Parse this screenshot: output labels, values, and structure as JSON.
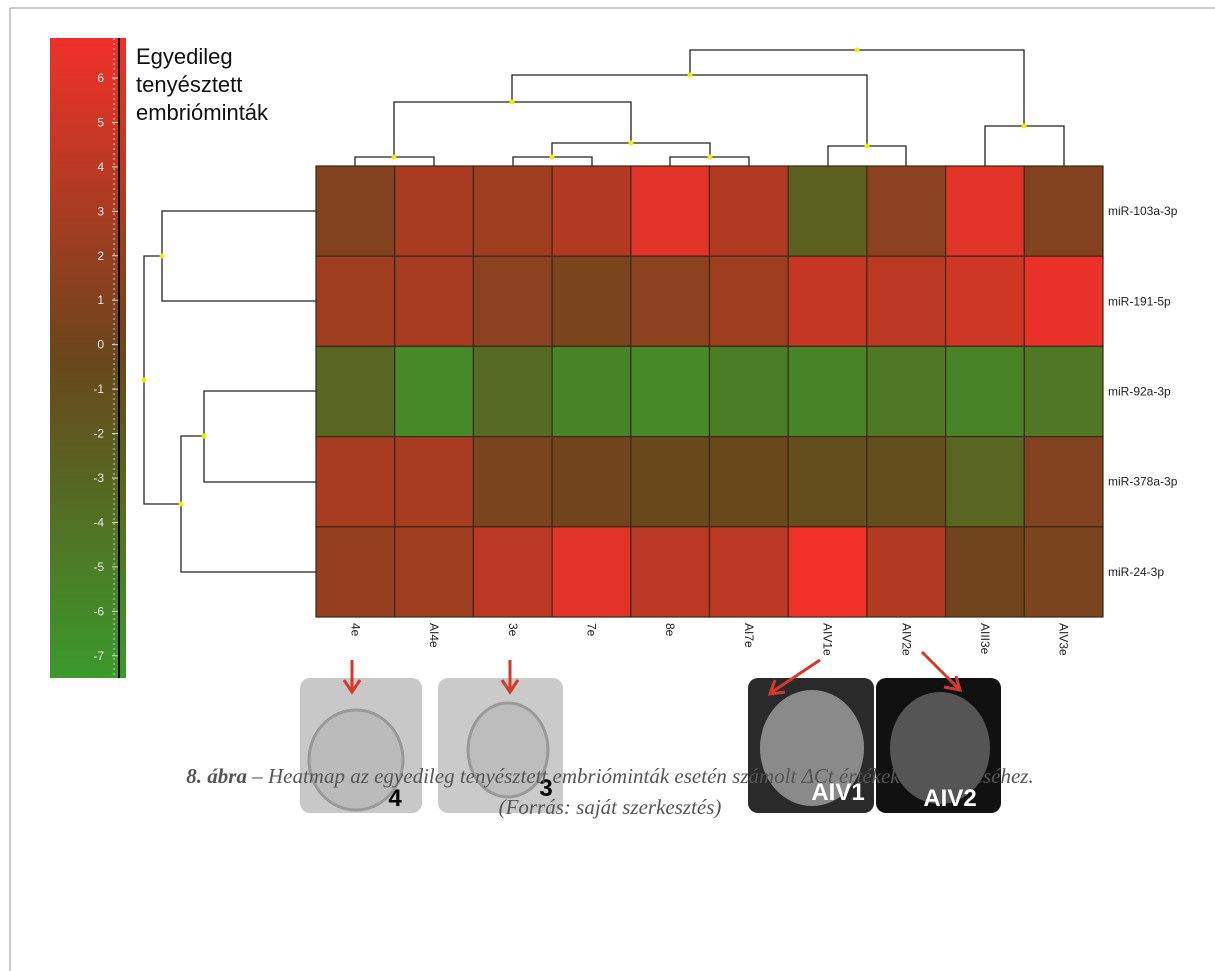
{
  "chart_data": {
    "type": "heatmap",
    "legend_title": [
      "Egyedileg",
      "tenyésztett",
      "embrióminták"
    ],
    "x_categories": [
      "4e",
      "AI4e",
      "3e",
      "7e",
      "8e",
      "AI7e",
      "AIV1e",
      "AIV2e",
      "AIII3e",
      "AIV3e"
    ],
    "y_categories": [
      "miR-103a-3p",
      "miR-191-5p",
      "miR-92a-3p",
      "miR-378a-3p",
      "miR-24-3p"
    ],
    "values": [
      [
        1,
        3,
        2.5,
        3.5,
        6,
        3.5,
        -2.5,
        1.5,
        6,
        1
      ],
      [
        2.5,
        3,
        1.5,
        0.5,
        1.5,
        2.5,
        4.5,
        4,
        5,
        6.5
      ],
      [
        -3,
        -6,
        -3.5,
        -5.5,
        -6,
        -5,
        -5.5,
        -4.5,
        -5.5,
        -4.5
      ],
      [
        3,
        3,
        0.5,
        0,
        -0.5,
        -0.5,
        -1,
        -1,
        -3,
        1
      ],
      [
        2,
        2.5,
        4,
        6,
        4,
        4,
        7,
        3.5,
        0,
        0.5
      ]
    ],
    "zlim": [
      -7.5,
      6.9
    ],
    "zticks": [
      6,
      5,
      4,
      3,
      2,
      1,
      0,
      -1,
      -2,
      -3,
      -4,
      -5,
      -6,
      -7
    ],
    "colors": [
      "#3b9a2c",
      "#6a461c",
      "#f2302a"
    ]
  },
  "images": [
    {
      "label": "4"
    },
    {
      "label": "3"
    },
    {
      "label": "AIV1"
    },
    {
      "label": "AIV2"
    }
  ],
  "caption": {
    "figure_label": "8. ábra",
    "text": " – Heatmap az egyedileg tenyésztett embrióminták esetén számolt ΔCt értékek összevetéséhez.",
    "source": "(Forrás: saját szerkesztés)"
  }
}
